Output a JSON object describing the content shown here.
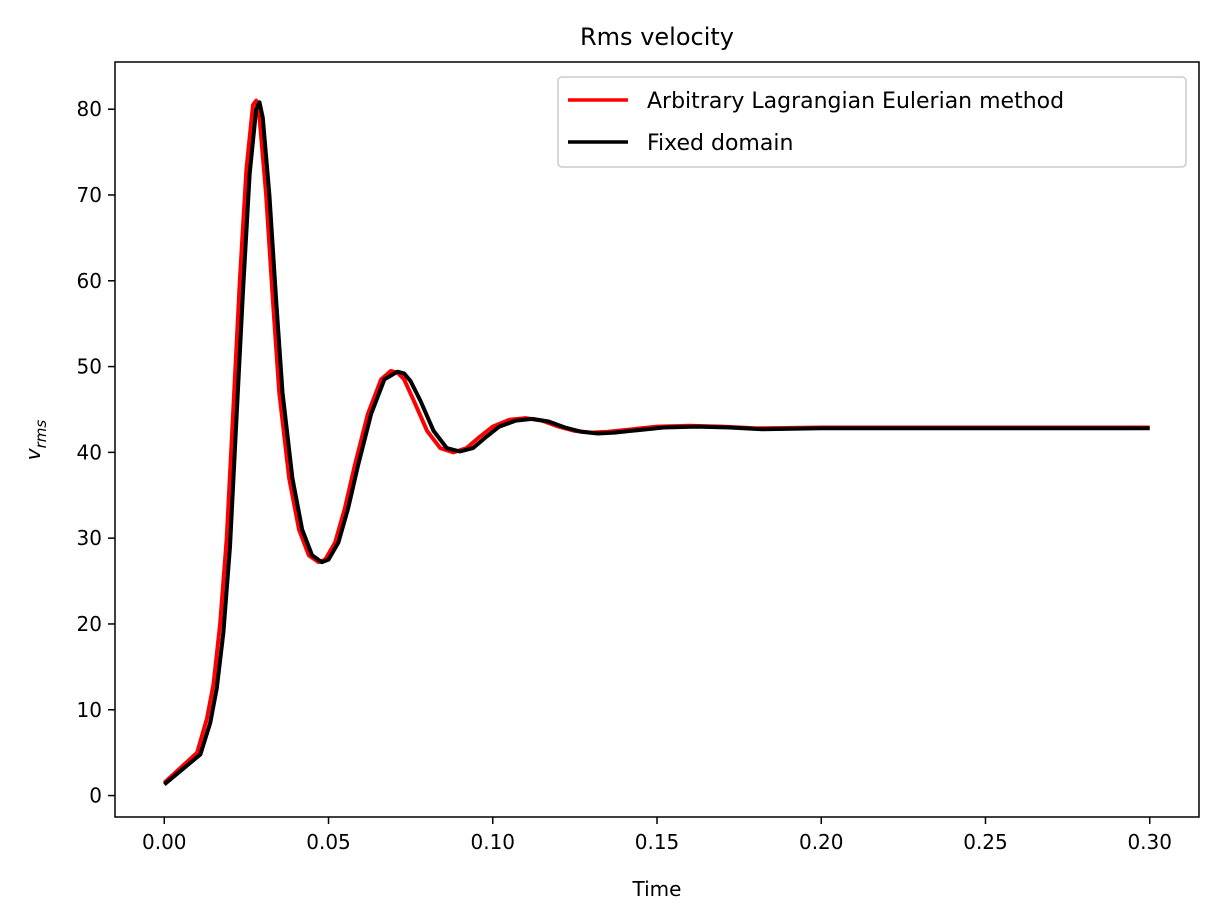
{
  "chart_data": {
    "type": "line",
    "title": "Rms velocity",
    "xlabel": "Time",
    "ylabel_main": "v",
    "ylabel_sub": "rms",
    "xlim": [
      -0.015,
      0.315
    ],
    "ylim": [
      -2.5,
      85.5
    ],
    "xticks": [
      0.0,
      0.05,
      0.1,
      0.15,
      0.2,
      0.25,
      0.3
    ],
    "xtick_labels": [
      "0.00",
      "0.05",
      "0.10",
      "0.15",
      "0.20",
      "0.25",
      "0.30"
    ],
    "yticks": [
      0,
      10,
      20,
      30,
      40,
      50,
      60,
      70,
      80
    ],
    "ytick_labels": [
      "0",
      "10",
      "20",
      "30",
      "40",
      "50",
      "60",
      "70",
      "80"
    ],
    "grid": false,
    "legend_position": "top-right",
    "series": [
      {
        "name": "Arbitrary Lagrangian Eulerian method",
        "color": "#ff0000",
        "x": [
          0.0,
          0.01,
          0.013,
          0.015,
          0.017,
          0.019,
          0.021,
          0.023,
          0.025,
          0.027,
          0.028,
          0.029,
          0.031,
          0.033,
          0.035,
          0.038,
          0.041,
          0.044,
          0.047,
          0.049,
          0.052,
          0.055,
          0.058,
          0.062,
          0.066,
          0.069,
          0.071,
          0.073,
          0.076,
          0.08,
          0.084,
          0.088,
          0.092,
          0.096,
          0.1,
          0.105,
          0.11,
          0.115,
          0.12,
          0.125,
          0.13,
          0.135,
          0.14,
          0.15,
          0.16,
          0.17,
          0.18,
          0.2,
          0.25,
          0.3
        ],
        "y": [
          1.5,
          5.0,
          9.0,
          13.0,
          20.0,
          30.0,
          45.0,
          60.0,
          73.0,
          80.5,
          81.0,
          79.0,
          70.0,
          58.0,
          47.0,
          37.0,
          31.0,
          28.0,
          27.2,
          27.5,
          29.5,
          33.5,
          38.5,
          44.5,
          48.5,
          49.5,
          49.3,
          48.5,
          46.0,
          42.5,
          40.5,
          40.0,
          40.5,
          41.8,
          43.0,
          43.8,
          44.0,
          43.7,
          43.0,
          42.5,
          42.3,
          42.4,
          42.6,
          43.0,
          43.1,
          43.0,
          42.8,
          42.9,
          42.9,
          42.9
        ]
      },
      {
        "name": "Fixed domain",
        "color": "#000000",
        "x": [
          0.0,
          0.011,
          0.014,
          0.016,
          0.018,
          0.02,
          0.022,
          0.024,
          0.026,
          0.028,
          0.029,
          0.03,
          0.032,
          0.034,
          0.036,
          0.039,
          0.042,
          0.045,
          0.048,
          0.05,
          0.053,
          0.056,
          0.059,
          0.063,
          0.067,
          0.071,
          0.073,
          0.075,
          0.078,
          0.082,
          0.086,
          0.09,
          0.094,
          0.098,
          0.102,
          0.107,
          0.112,
          0.117,
          0.122,
          0.127,
          0.132,
          0.137,
          0.142,
          0.152,
          0.162,
          0.172,
          0.182,
          0.2,
          0.25,
          0.3
        ],
        "y": [
          1.3,
          4.8,
          8.5,
          12.5,
          19.0,
          29.0,
          44.0,
          59.0,
          72.5,
          80.0,
          80.8,
          79.0,
          70.0,
          58.0,
          47.0,
          37.0,
          31.0,
          28.0,
          27.2,
          27.5,
          29.5,
          33.5,
          38.5,
          44.5,
          48.5,
          49.4,
          49.2,
          48.3,
          46.0,
          42.5,
          40.5,
          40.1,
          40.5,
          41.8,
          43.0,
          43.7,
          43.9,
          43.6,
          42.9,
          42.4,
          42.2,
          42.3,
          42.5,
          42.9,
          43.0,
          42.9,
          42.7,
          42.8,
          42.8,
          42.8
        ]
      }
    ]
  }
}
